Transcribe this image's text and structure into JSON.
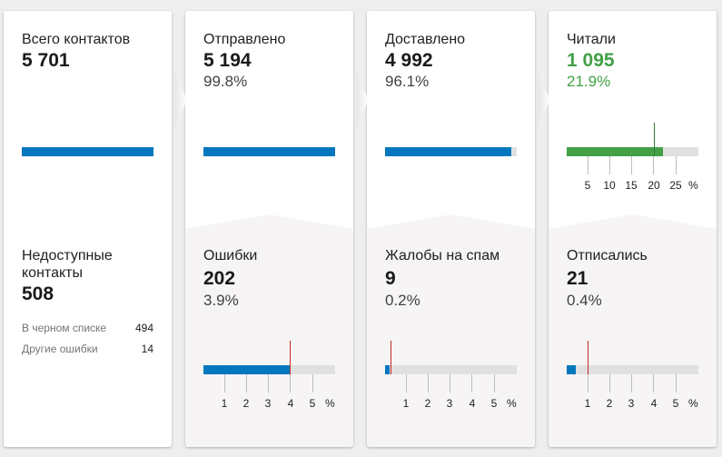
{
  "colors": {
    "blue": "#0277bd",
    "green": "#43a047",
    "track": "#e0e0e0",
    "marker_red": "#c62828",
    "marker_green": "#2e7d32"
  },
  "cards": [
    {
      "top": {
        "label": "Всего контактов",
        "value": "5 701",
        "fill_fraction": 1.0
      },
      "bottom": {
        "label": "Недоступные контакты",
        "value": "508",
        "details": [
          {
            "label": "В черном списке",
            "value": "494"
          },
          {
            "label": "Другие ошибки",
            "value": "14"
          }
        ]
      }
    },
    {
      "top": {
        "label": "Отправлено",
        "value": "5 194",
        "percent": "99.8%",
        "fill_fraction": 0.998
      },
      "bottom": {
        "label": "Ошибки",
        "value": "202",
        "percent": "3.9%",
        "fill_fraction": 0.65,
        "marker_value": 4,
        "ticks": [
          "1",
          "2",
          "3",
          "4",
          "5"
        ],
        "unit": "%"
      }
    },
    {
      "top": {
        "label": "Доставлено",
        "value": "4 992",
        "percent": "96.1%",
        "fill_fraction": 0.961
      },
      "bottom": {
        "label": "Жалобы на спам",
        "value": "9",
        "percent": "0.2%",
        "fill_fraction": 0.035,
        "marker_value": 0.25,
        "ticks": [
          "1",
          "2",
          "3",
          "4",
          "5"
        ],
        "unit": "%"
      }
    },
    {
      "top": {
        "label": "Читали",
        "value": "1 095",
        "percent": "21.9%",
        "fill_fraction": 0.73,
        "marker_value": 20,
        "ticks": [
          "5",
          "10",
          "15",
          "20",
          "25"
        ],
        "unit": "%"
      },
      "bottom": {
        "label": "Отписались",
        "value": "21",
        "percent": "0.4%",
        "fill_fraction": 0.07,
        "marker_value": 1,
        "ticks": [
          "1",
          "2",
          "3",
          "4",
          "5"
        ],
        "unit": "%"
      }
    }
  ]
}
